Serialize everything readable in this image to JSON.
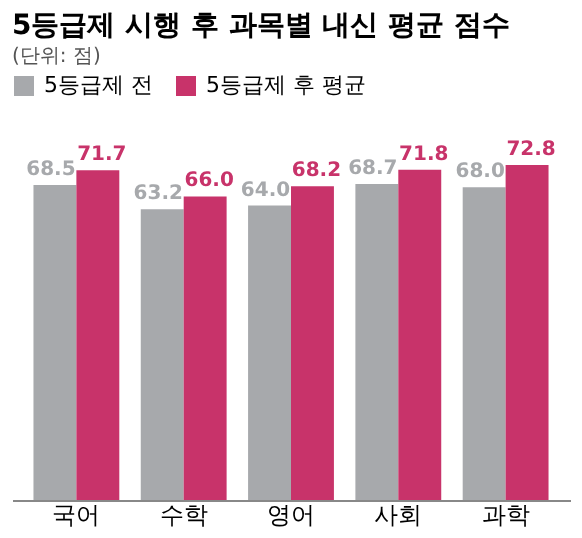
{
  "chart_data": {
    "type": "bar",
    "title": "5등급제 시행 후 과목별 내신 평균 점수",
    "subtitle": "(단위: 점)",
    "categories": [
      "국어",
      "수학",
      "영어",
      "사회",
      "과학"
    ],
    "series": [
      {
        "name": "5등급제 전",
        "color": "#a7a9ac",
        "values": [
          68.5,
          63.2,
          64.0,
          68.7,
          68.0
        ],
        "value_labels": [
          "68.5",
          "63.2",
          "64.0",
          "68.7",
          "68.0"
        ]
      },
      {
        "name": "5등급제 후 평균",
        "color": "#c8336a",
        "values": [
          71.7,
          66.0,
          68.2,
          71.8,
          72.8
        ],
        "value_labels": [
          "71.7",
          "66.0",
          "68.2",
          "71.8",
          "72.8"
        ]
      }
    ],
    "data_labels": true,
    "legend": "top",
    "grid": false,
    "tick_labels": "x"
  }
}
